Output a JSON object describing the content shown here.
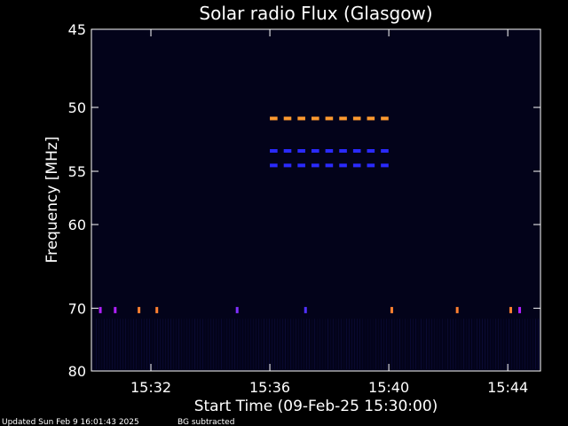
{
  "chart_data": {
    "type": "heatmap",
    "title": "Solar radio Flux (Glasgow)",
    "xlabel": "Start Time (09-Feb-25 15:30:00)",
    "ylabel": "Frequency [MHz]",
    "x_ticks": [
      "15:32",
      "15:36",
      "15:40",
      "15:44"
    ],
    "x_tick_minutes": [
      2,
      6,
      10,
      14
    ],
    "xlim_minutes": [
      0,
      15.1
    ],
    "y_ticks": [
      45,
      50,
      55,
      60,
      70,
      80
    ],
    "ylim": [
      45,
      80
    ],
    "y_scale": "reciprocal",
    "background": "BG subtracted",
    "features": [
      {
        "name": "orange-band",
        "freq": 50.8,
        "t_start": 6.0,
        "t_end": 10.2,
        "color": "#ff9a30"
      },
      {
        "name": "blue-band-upper",
        "freq": 53.3,
        "t_start": 6.0,
        "t_end": 10.2,
        "color": "#2a2aff"
      },
      {
        "name": "blue-band-lower",
        "freq": 54.5,
        "t_start": 6.0,
        "t_end": 10.2,
        "color": "#2a2aff"
      }
    ],
    "rfi_spikes": [
      {
        "t": 0.3,
        "freq": 70.2,
        "color": "#b020ff"
      },
      {
        "t": 0.8,
        "freq": 70.2,
        "color": "#b020ff"
      },
      {
        "t": 1.6,
        "freq": 70.2,
        "color": "#ff8030"
      },
      {
        "t": 2.2,
        "freq": 70.2,
        "color": "#ff8030"
      },
      {
        "t": 4.9,
        "freq": 70.2,
        "color": "#8030ff"
      },
      {
        "t": 7.2,
        "freq": 70.2,
        "color": "#5030ff"
      },
      {
        "t": 10.1,
        "freq": 70.2,
        "color": "#ff8030"
      },
      {
        "t": 12.3,
        "freq": 70.2,
        "color": "#ff8030"
      },
      {
        "t": 14.1,
        "freq": 70.2,
        "color": "#ff8030"
      },
      {
        "t": 14.4,
        "freq": 70.2,
        "color": "#b020ff"
      }
    ]
  },
  "footer": {
    "updated": "Updated Sun Feb  9 16:01:43 2025",
    "note": "BG subtracted"
  }
}
